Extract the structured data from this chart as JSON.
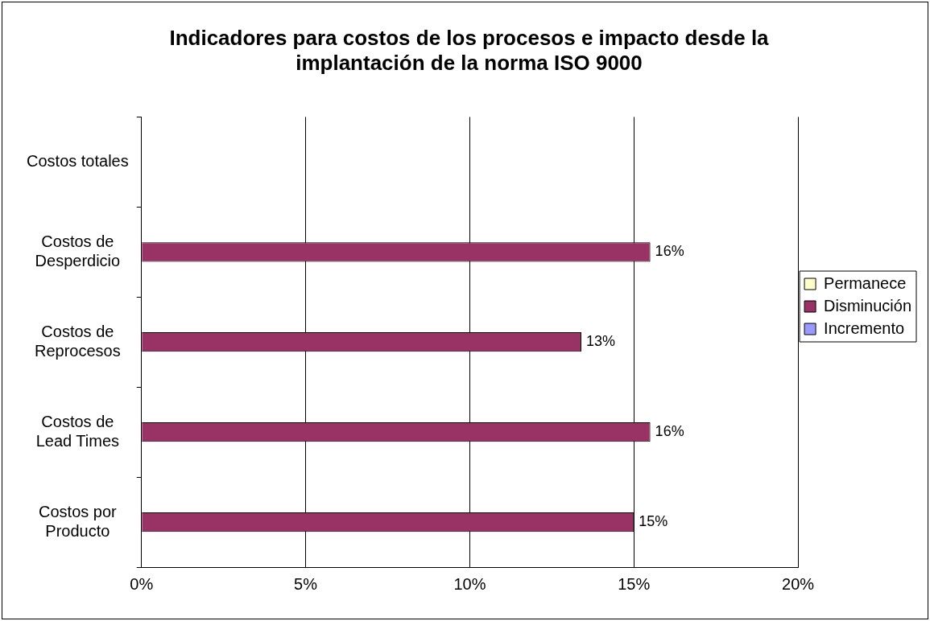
{
  "chart_data": {
    "type": "bar",
    "orientation": "horizontal",
    "title": "Indicadores para costos de los procesos e impacto desde la implantación de la norma ISO 9000",
    "categories": [
      "Costos totales",
      "Costos de Desperdicio",
      "Costos de Reprocesos",
      "Costos de  Lead Times",
      "Costos por Producto"
    ],
    "series": [
      {
        "name": "Permanece",
        "color": "#ffffcc",
        "values": [
          null,
          null,
          null,
          null,
          null
        ]
      },
      {
        "name": "Disminución",
        "color": "#993366",
        "values": [
          null,
          15.5,
          13.4,
          15.5,
          15
        ],
        "value_labels": [
          null,
          "16%",
          "13%",
          "16%",
          "15%"
        ]
      },
      {
        "name": "Incremento",
        "color": "#9999ff",
        "values": [
          null,
          null,
          null,
          null,
          null
        ]
      }
    ],
    "xlim": [
      0,
      20
    ],
    "xticks": [
      {
        "value": 0,
        "label": "0%"
      },
      {
        "value": 5,
        "label": "5%"
      },
      {
        "value": 10,
        "label": "10%"
      },
      {
        "value": 15,
        "label": "15%"
      },
      {
        "value": 20,
        "label": "20%"
      }
    ],
    "grid": "x",
    "legend": "right"
  }
}
